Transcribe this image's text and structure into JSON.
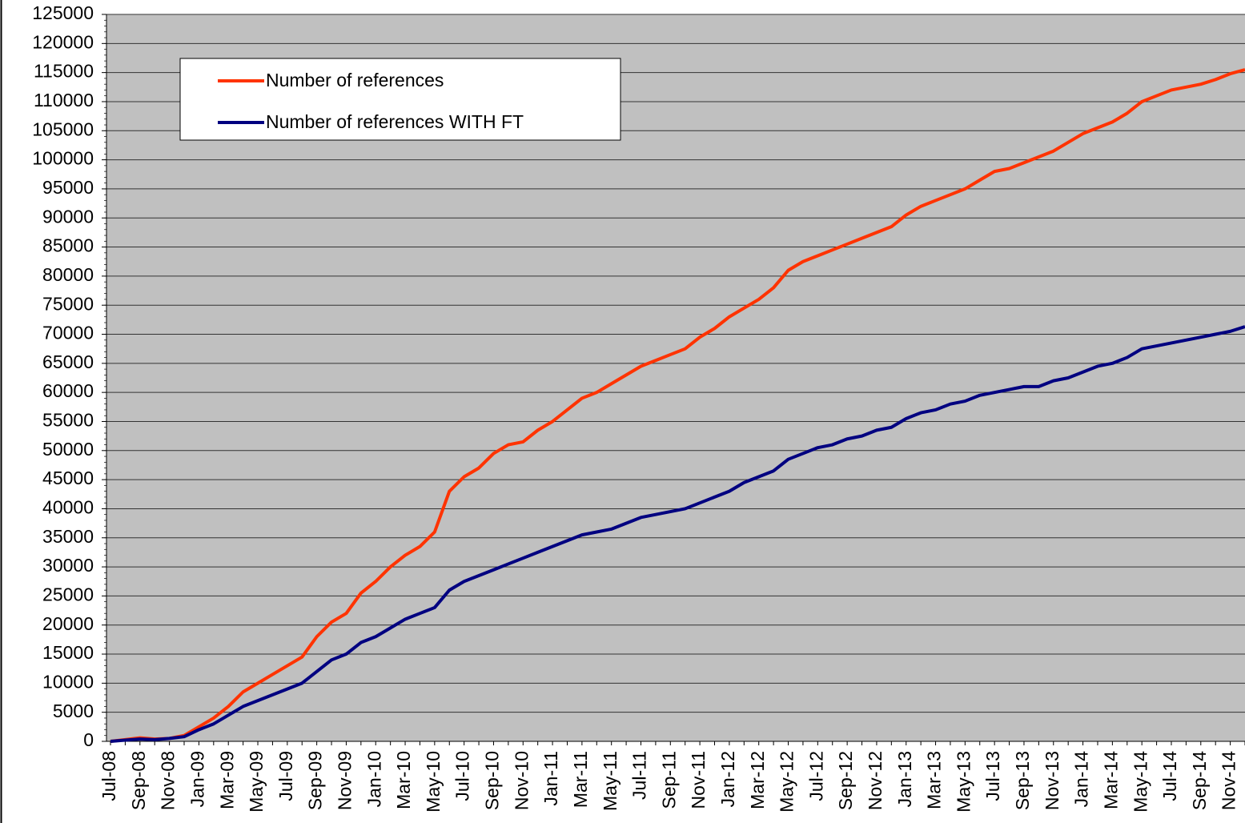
{
  "chart_data": {
    "type": "line",
    "categories": [
      "Jul-08",
      null,
      "Sep-08",
      null,
      "Nov-08",
      null,
      "Jan-09",
      null,
      "Mar-09",
      null,
      "May-09",
      null,
      "Jul-09",
      null,
      "Sep-09",
      null,
      "Nov-09",
      null,
      "Jan-10",
      null,
      "Mar-10",
      null,
      "May-10",
      null,
      "Jul-10",
      null,
      "Sep-10",
      null,
      "Nov-10",
      null,
      "Jan-11",
      null,
      "Mar-11",
      null,
      "May-11",
      null,
      "Jul-11",
      null,
      "Sep-11",
      null,
      "Nov-11",
      null,
      "Jan-12",
      null,
      "Mar-12",
      null,
      "May-12",
      null,
      "Jul-12",
      null,
      "Sep-12",
      null,
      "Nov-12",
      null,
      "Jan-13",
      null,
      "Mar-13",
      null,
      "May-13",
      null,
      "Jul-13",
      null,
      "Sep-13",
      null,
      "Nov-13",
      null,
      "Jan-14",
      null,
      "Mar-14",
      null,
      "May-14",
      null,
      "Jul-14",
      null,
      "Sep-14",
      null,
      "Nov-14",
      null
    ],
    "series": [
      {
        "name": "Number of references",
        "color": "#ff3300",
        "values": [
          0,
          300,
          600,
          400,
          500,
          1000,
          2500,
          4000,
          6000,
          8500,
          10000,
          11500,
          13000,
          14500,
          18000,
          20500,
          22000,
          25500,
          27500,
          30000,
          32000,
          33500,
          36000,
          43000,
          45500,
          47000,
          49500,
          51000,
          51500,
          53500,
          55000,
          57000,
          59000,
          60000,
          61500,
          63000,
          64500,
          65500,
          66500,
          67500,
          69500,
          71000,
          73000,
          74500,
          76000,
          78000,
          81000,
          82500,
          83500,
          84500,
          85500,
          86500,
          87500,
          88500,
          90500,
          92000,
          93000,
          94000,
          95000,
          96500,
          98000,
          98500,
          99500,
          100500,
          101500,
          103000,
          104500,
          105500,
          106500,
          108000,
          110000,
          111000,
          112000,
          112500,
          113000,
          113800,
          114800,
          115500
        ]
      },
      {
        "name": "Number of references WITH FT",
        "color": "#000080",
        "values": [
          0,
          200,
          400,
          300,
          500,
          800,
          2000,
          3000,
          4500,
          6000,
          7000,
          8000,
          9000,
          10000,
          12000,
          14000,
          15000,
          17000,
          18000,
          19500,
          21000,
          22000,
          23000,
          26000,
          27500,
          28500,
          29500,
          30500,
          31500,
          32500,
          33500,
          34500,
          35500,
          36000,
          36500,
          37500,
          38500,
          39000,
          39500,
          40000,
          41000,
          42000,
          43000,
          44500,
          45500,
          46500,
          48500,
          49500,
          50500,
          51000,
          52000,
          52500,
          53500,
          54000,
          55500,
          56500,
          57000,
          58000,
          58500,
          59500,
          60000,
          60500,
          61000,
          61000,
          62000,
          62500,
          63500,
          64500,
          65000,
          66000,
          67500,
          68000,
          68500,
          69000,
          69500,
          70000,
          70500,
          71300
        ]
      }
    ],
    "ylim": [
      0,
      125000
    ],
    "yticks": [
      0,
      5000,
      10000,
      15000,
      20000,
      25000,
      30000,
      35000,
      40000,
      45000,
      50000,
      55000,
      60000,
      65000,
      70000,
      75000,
      80000,
      85000,
      90000,
      95000,
      100000,
      105000,
      110000,
      115000,
      120000,
      125000
    ],
    "grid": true,
    "legend": "upper left"
  }
}
